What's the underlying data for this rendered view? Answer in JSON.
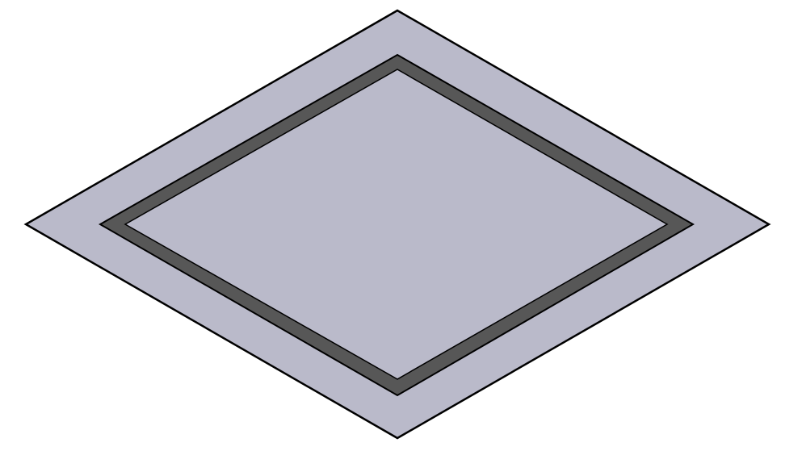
{
  "figure": {
    "shape": "isometric square plate with recessed square groove",
    "colors": {
      "background": "#ffffff",
      "plate_face": "#babaca",
      "groove": "#575757",
      "outline": "#000000"
    }
  }
}
